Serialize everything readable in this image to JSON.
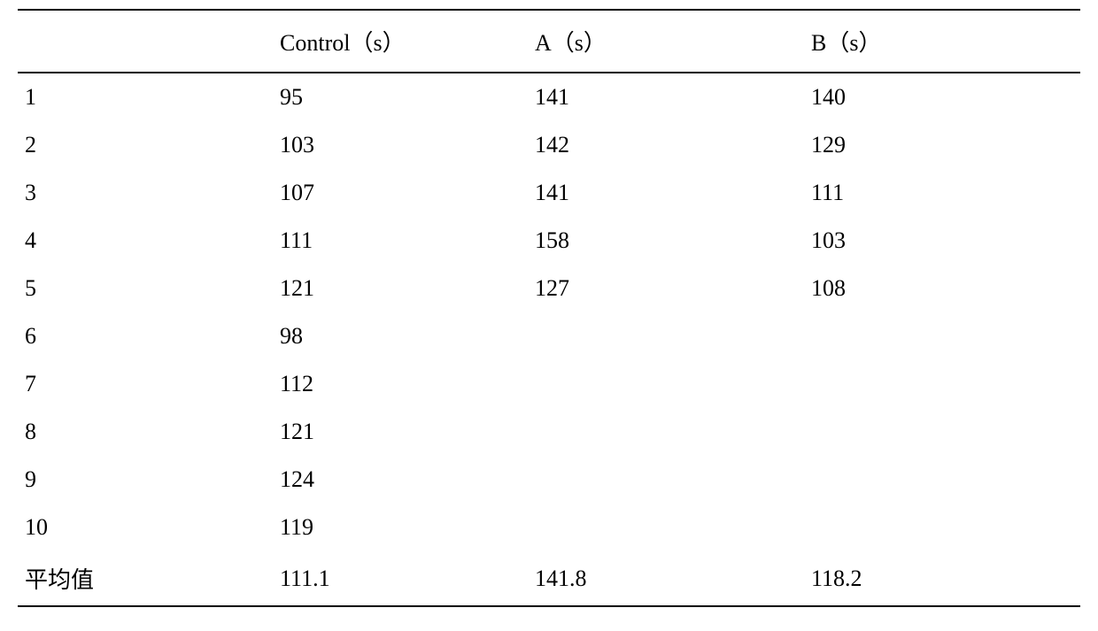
{
  "table": {
    "columns": [
      "",
      "Control（s）",
      "A（s）",
      "B（s）"
    ],
    "rows": [
      [
        "1",
        "95",
        "141",
        "140"
      ],
      [
        "2",
        "103",
        "142",
        "129"
      ],
      [
        "3",
        "107",
        "141",
        "111"
      ],
      [
        "4",
        "111",
        "158",
        "103"
      ],
      [
        "5",
        "121",
        "127",
        "108"
      ],
      [
        "6",
        "98",
        "",
        ""
      ],
      [
        "7",
        "112",
        "",
        ""
      ],
      [
        "8",
        "121",
        "",
        ""
      ],
      [
        "9",
        "124",
        "",
        ""
      ],
      [
        "10",
        "119",
        "",
        ""
      ],
      [
        "平均值",
        "111.1",
        "141.8",
        "118.2"
      ]
    ],
    "border_color": "#000000",
    "background_color": "#ffffff",
    "text_color": "#000000",
    "fontsize": 26,
    "col_widths_pct": [
      24,
      24,
      26,
      26
    ]
  }
}
